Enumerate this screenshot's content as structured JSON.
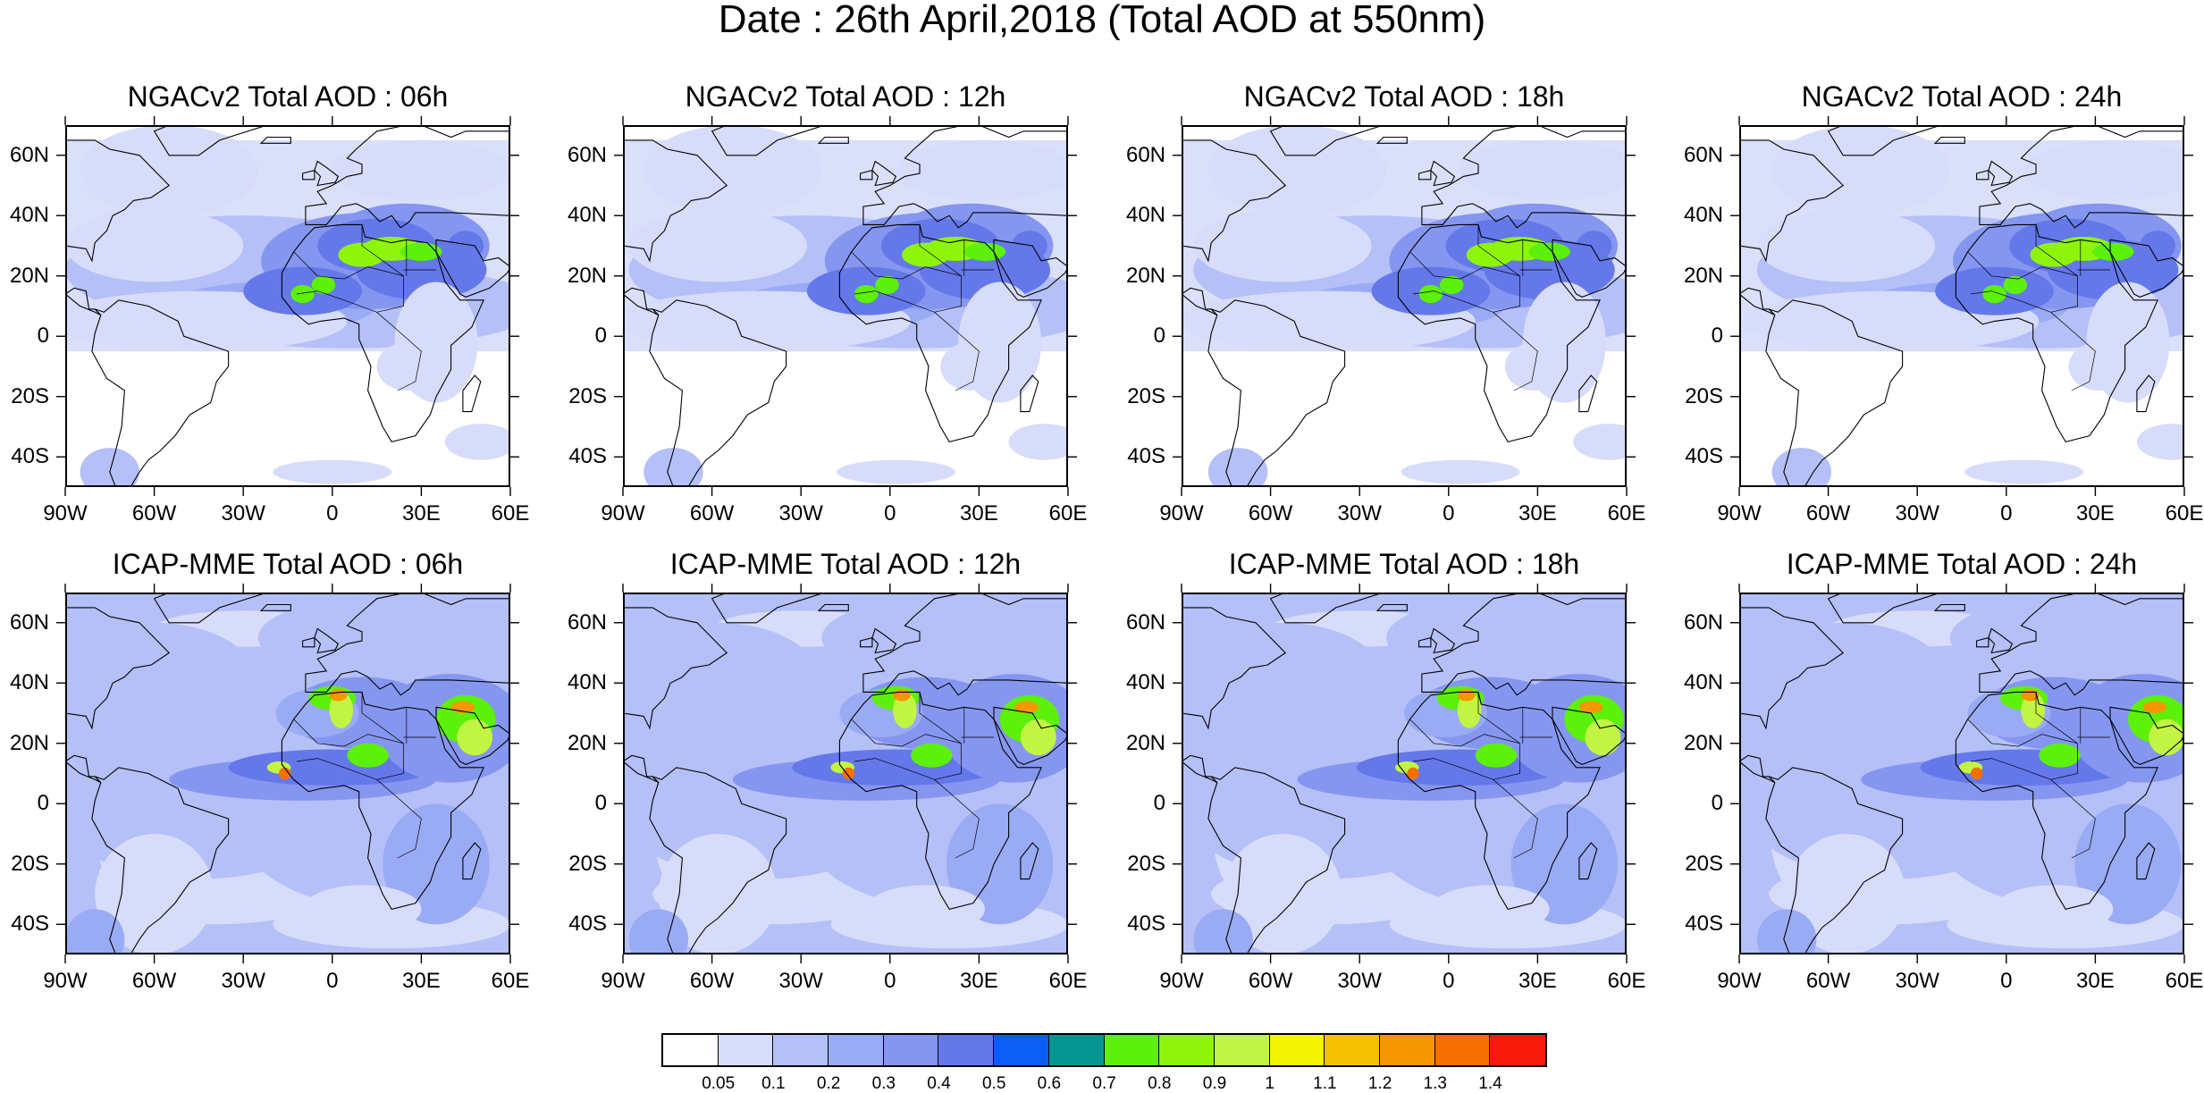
{
  "title": "Date : 26th April,2018 (Total AOD at 550nm)",
  "panels": [
    {
      "title": "NGACv2 Total AOD : 06h",
      "model": "NGAC",
      "hour": 6
    },
    {
      "title": "NGACv2 Total AOD : 12h",
      "model": "NGAC",
      "hour": 12
    },
    {
      "title": "NGACv2 Total AOD : 18h",
      "model": "NGAC",
      "hour": 18
    },
    {
      "title": "NGACv2 Total AOD : 24h",
      "model": "NGAC",
      "hour": 24
    },
    {
      "title": "ICAP-MME Total AOD : 06h",
      "model": "ICAP",
      "hour": 6
    },
    {
      "title": "ICAP-MME Total AOD : 12h",
      "model": "ICAP",
      "hour": 12
    },
    {
      "title": "ICAP-MME Total AOD : 18h",
      "model": "ICAP",
      "hour": 18
    },
    {
      "title": "ICAP-MME Total AOD : 24h",
      "model": "ICAP",
      "hour": 24
    }
  ],
  "lat_labels": [
    "60N",
    "40N",
    "20N",
    "0",
    "20S",
    "40S"
  ],
  "lat_values": [
    60,
    40,
    20,
    0,
    -20,
    -40
  ],
  "lon_labels": [
    "90W",
    "60W",
    "30W",
    "0",
    "30E",
    "60E"
  ],
  "lon_values": [
    -90,
    -60,
    -30,
    0,
    30,
    60
  ],
  "map_extent": {
    "lon": [
      -90,
      60
    ],
    "lat": [
      -50,
      70
    ]
  },
  "colorbar": {
    "labels": [
      "0.05",
      "0.1",
      "0.2",
      "0.3",
      "0.4",
      "0.5",
      "0.6",
      "0.7",
      "0.8",
      "0.9",
      "1",
      "1.1",
      "1.2",
      "1.3",
      "1.4"
    ],
    "colors": [
      "#ffffff",
      "#d6dcfa",
      "#b4c0f7",
      "#9aabf5",
      "#8596f0",
      "#6478ea",
      "#0a5ef5",
      "#06968f",
      "#5cf00a",
      "#8ef50a",
      "#c2f543",
      "#f5f500",
      "#f5c000",
      "#f59800",
      "#f57000",
      "#f51a0a"
    ]
  }
}
